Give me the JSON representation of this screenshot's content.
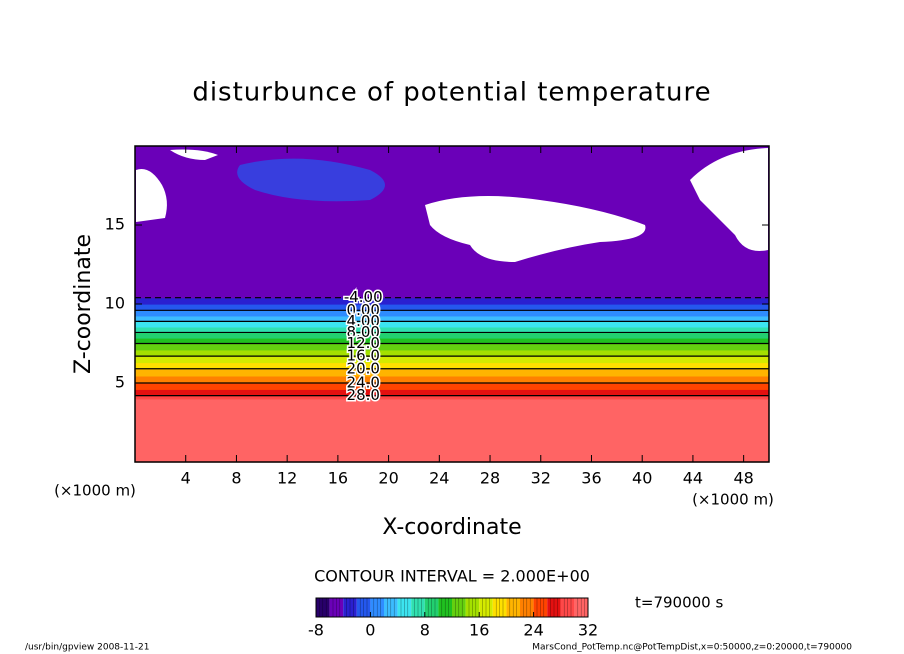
{
  "chart_data": {
    "type": "contour",
    "title": "disturbunce of potential temperature",
    "x_label": "X-coordinate",
    "y_label": "Z-coordinate",
    "x_unit": "(×1000 m)",
    "y_unit": "(×1000 m)",
    "xlim": [
      0,
      50
    ],
    "ylim": [
      0,
      20
    ],
    "xticks": [
      4,
      8,
      12,
      16,
      20,
      24,
      28,
      32,
      36,
      40,
      44,
      48
    ],
    "yticks": [
      5,
      10,
      15
    ],
    "profile": {
      "z": [
        0,
        4,
        4.2,
        5.0,
        5.9,
        6.7,
        7.5,
        8.2,
        8.9,
        9.6,
        10.4,
        12,
        16,
        20
      ],
      "values": [
        30,
        30,
        28,
        24,
        20,
        16,
        12,
        8,
        4,
        0,
        -4,
        -6,
        -6,
        -6
      ]
    },
    "contour_labels": [
      {
        "value": -4,
        "label": "-4.00"
      },
      {
        "value": 0,
        "label": "0.00"
      },
      {
        "value": 4,
        "label": "4.00"
      },
      {
        "value": 8,
        "label": "8.00"
      },
      {
        "value": 12,
        "label": "12.0"
      },
      {
        "value": 16,
        "label": "16.0"
      },
      {
        "value": 20,
        "label": "20.0"
      },
      {
        "value": 24,
        "label": "24.0"
      },
      {
        "value": 28,
        "label": "28.0"
      }
    ],
    "contour_interval_text": "CONTOUR INTERVAL = 2.000E+00",
    "time_text": "t=790000 s",
    "clim": [
      -8,
      32
    ],
    "cticks": [
      -8,
      0,
      8,
      16,
      24,
      32
    ],
    "colormap": [
      "#28006a",
      "#6a00b8",
      "#2a20d0",
      "#2458ee",
      "#2f8cff",
      "#3cbcff",
      "#3ce4f0",
      "#30e0b0",
      "#22d070",
      "#20c020",
      "#64d010",
      "#a4e000",
      "#d4ea00",
      "#ffe000",
      "#ffb400",
      "#ff8000",
      "#ff4400",
      "#e41010",
      "#ff4848",
      "#ff6464"
    ],
    "footer_left": "/usr/bin/gpview  2008-11-21",
    "footer_right": "MarsCond_PotTemp.nc@PotTempDist,x=0:50000,z=0:20000,t=790000"
  }
}
